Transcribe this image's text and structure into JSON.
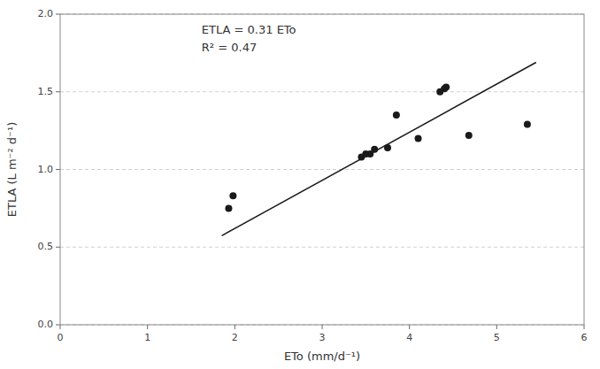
{
  "chart_data": {
    "type": "scatter",
    "x_label": "ETo (mm/d⁻¹)",
    "y_label": "ETLA (L m⁻² d⁻¹)",
    "annotations": [
      "ETLA = 0.31 ETo",
      "R² = 0.47"
    ],
    "series": [
      {
        "type": "scatter",
        "color": "#1a1a1a",
        "x": [
          1.93,
          1.98,
          3.45,
          3.5,
          3.55,
          3.6,
          3.75,
          3.85,
          4.1,
          4.35,
          4.4,
          4.42,
          4.68,
          5.35
        ],
        "values": [
          0.75,
          0.83,
          1.08,
          1.1,
          1.1,
          1.13,
          1.14,
          1.35,
          1.2,
          1.5,
          1.52,
          1.53,
          1.22,
          1.29
        ]
      },
      {
        "type": "line",
        "color": "#1a1a1a",
        "x": [
          1.85,
          5.45
        ],
        "values": [
          0.5735,
          1.6895
        ]
      }
    ],
    "xlim": [
      0,
      6
    ],
    "ylim": [
      0.0,
      2.0
    ],
    "xticks": [
      0,
      1,
      2,
      3,
      4,
      5,
      6
    ],
    "yticks": [
      {
        "value": 0,
        "label": "0.0"
      },
      0.5,
      {
        "value": 1,
        "label": "1.0"
      },
      1.5,
      {
        "value": 2,
        "label": "2.0"
      }
    ],
    "grid": true
  }
}
